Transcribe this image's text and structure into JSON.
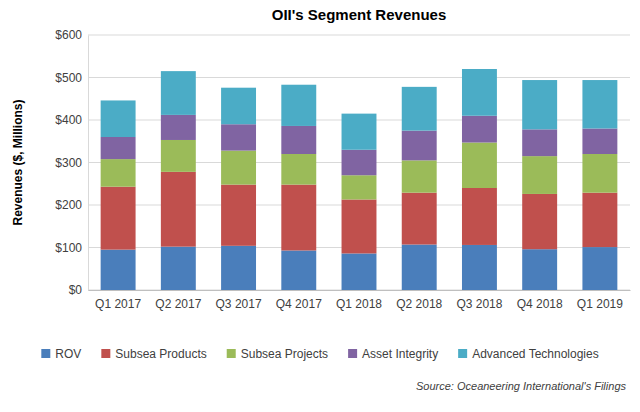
{
  "chart_data": {
    "type": "bar",
    "title": "OII's Segment Revenues",
    "y_label": "Revenues ($, Millions)",
    "annotations": [
      "Source: Oceaneering International's Filings"
    ],
    "categories": [
      "Q1 2017",
      "Q2 2017",
      "Q3 2017",
      "Q4 2017",
      "Q1 2018",
      "Q2 2018",
      "Q3 2018",
      "Q4 2018",
      "Q1 2019"
    ],
    "series": [
      {
        "name": "ROV",
        "color": "#4a7ebb",
        "values": [
          95,
          102,
          104,
          93,
          86,
          107,
          106,
          96,
          101
        ]
      },
      {
        "name": "Subsea Products",
        "color": "#c0504d",
        "values": [
          148,
          176,
          144,
          155,
          127,
          122,
          134,
          130,
          128
        ]
      },
      {
        "name": "Subsea Projects",
        "color": "#9bbb59",
        "values": [
          65,
          75,
          80,
          72,
          57,
          76,
          107,
          89,
          91
        ]
      },
      {
        "name": "Asset Integrity",
        "color": "#8064a2",
        "values": [
          52,
          59,
          62,
          66,
          60,
          70,
          63,
          63,
          60
        ]
      },
      {
        "name": "Advanced Technologies",
        "color": "#4bacc6",
        "values": [
          86,
          103,
          86,
          97,
          85,
          103,
          110,
          116,
          114
        ]
      }
    ],
    "stacked": true,
    "grid": true,
    "legend": "bottom",
    "ylim": [
      0,
      600
    ],
    "yticks": [
      {
        "value": 0,
        "label": "$0"
      },
      {
        "value": 100,
        "label": "$100"
      },
      {
        "value": 200,
        "label": "$200"
      },
      {
        "value": 300,
        "label": "$300"
      },
      {
        "value": 400,
        "label": "$400"
      },
      {
        "value": 500,
        "label": "$500"
      },
      {
        "value": 600,
        "label": "$600"
      }
    ]
  }
}
